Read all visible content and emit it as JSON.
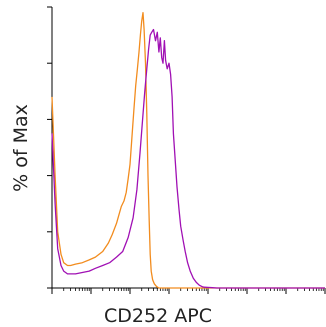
{
  "chart_data": {
    "type": "line",
    "title": "",
    "xlabel": "CD252 APC",
    "ylabel": "% of Max",
    "x_scale": "log",
    "xlim": [
      10,
      100000000
    ],
    "ylim": [
      0,
      100
    ],
    "grid": false,
    "legend": "none",
    "series": [
      {
        "color": "#f28c1e",
        "x": [
          10,
          12,
          14,
          17,
          20,
          25,
          30,
          40,
          60,
          90,
          130,
          200,
          280,
          350,
          450,
          520,
          600,
          700,
          800,
          900,
          1000,
          1100,
          1250,
          1400,
          1550,
          1700,
          1850,
          2000,
          2150,
          2300,
          2500,
          2700,
          2900,
          3100,
          3300,
          3500,
          3800,
          4200,
          4800,
          5500,
          6500,
          8000,
          10000,
          20000,
          100000000
        ],
        "y": [
          68,
          40,
          20,
          12,
          9,
          8,
          8,
          8.5,
          9,
          10,
          11,
          13,
          16,
          19,
          23,
          26,
          29,
          31,
          34,
          39,
          44,
          52,
          63,
          72,
          78,
          84,
          90,
          95,
          98,
          92,
          80,
          62,
          40,
          24,
          12,
          6,
          3,
          1.5,
          0.5,
          0,
          0,
          0,
          0,
          0,
          0
        ]
      },
      {
        "color": "#a010b4",
        "x": [
          10,
          12,
          14,
          17,
          20,
          25,
          30,
          40,
          60,
          90,
          130,
          200,
          300,
          450,
          650,
          900,
          1200,
          1500,
          1800,
          2100,
          2400,
          2700,
          3000,
          3300,
          3600,
          4000,
          4500,
          5000,
          5500,
          6000,
          6500,
          7000,
          7600,
          8200,
          9000,
          10000,
          11000,
          12000,
          13000,
          14500,
          16000,
          18000,
          20000,
          23000,
          26000,
          30000,
          35000,
          42000,
          50000,
          60000,
          70000,
          80000,
          100000,
          130000,
          170000,
          220000,
          300000,
          100000000
        ],
        "y": [
          55,
          30,
          14,
          8,
          6,
          5,
          5,
          5,
          5.5,
          6,
          7,
          8,
          9,
          11,
          13,
          18,
          25,
          35,
          48,
          60,
          70,
          78,
          85,
          90,
          91,
          92,
          88,
          91,
          84,
          89,
          82,
          80,
          88,
          81,
          78,
          80,
          76,
          68,
          55,
          45,
          36,
          28,
          22,
          17,
          13,
          9,
          6,
          3.5,
          2,
          1,
          0.5,
          0.3,
          0.2,
          0.1,
          0,
          0,
          0,
          0
        ]
      }
    ]
  }
}
